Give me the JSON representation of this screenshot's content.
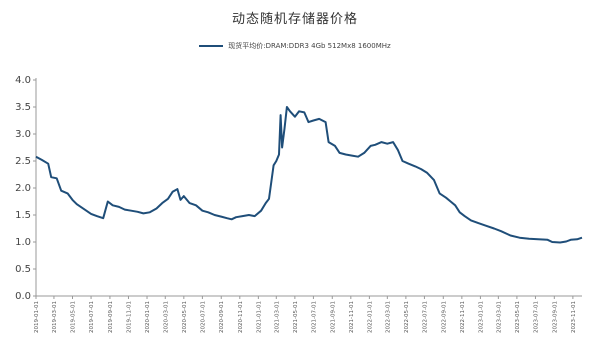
{
  "chart_data": {
    "type": "line",
    "title": "动态随机存储器价格",
    "series": [
      {
        "name": "现货平均价:DRAM:DDR3 4Gb 512Mx8 1600MHz",
        "color": "#1f4e79",
        "points": [
          [
            "2019-01-01",
            2.58
          ],
          [
            "2019-01-20",
            2.52
          ],
          [
            "2019-02-10",
            2.45
          ],
          [
            "2019-02-20",
            2.2
          ],
          [
            "2019-03-10",
            2.18
          ],
          [
            "2019-03-25",
            1.95
          ],
          [
            "2019-04-15",
            1.9
          ],
          [
            "2019-05-01",
            1.78
          ],
          [
            "2019-05-15",
            1.7
          ],
          [
            "2019-06-10",
            1.6
          ],
          [
            "2019-07-01",
            1.52
          ],
          [
            "2019-07-20",
            1.48
          ],
          [
            "2019-08-10",
            1.44
          ],
          [
            "2019-08-25",
            1.75
          ],
          [
            "2019-09-10",
            1.68
          ],
          [
            "2019-10-01",
            1.65
          ],
          [
            "2019-10-20",
            1.6
          ],
          [
            "2019-11-10",
            1.58
          ],
          [
            "2019-12-01",
            1.56
          ],
          [
            "2019-12-20",
            1.53
          ],
          [
            "2020-01-10",
            1.55
          ],
          [
            "2020-02-01",
            1.62
          ],
          [
            "2020-02-20",
            1.72
          ],
          [
            "2020-03-10",
            1.8
          ],
          [
            "2020-03-25",
            1.93
          ],
          [
            "2020-04-10",
            1.98
          ],
          [
            "2020-04-20",
            1.78
          ],
          [
            "2020-05-01",
            1.85
          ],
          [
            "2020-05-20",
            1.72
          ],
          [
            "2020-06-10",
            1.68
          ],
          [
            "2020-07-01",
            1.58
          ],
          [
            "2020-07-20",
            1.55
          ],
          [
            "2020-08-10",
            1.5
          ],
          [
            "2020-09-01",
            1.47
          ],
          [
            "2020-09-20",
            1.44
          ],
          [
            "2020-10-05",
            1.42
          ],
          [
            "2020-10-20",
            1.46
          ],
          [
            "2020-11-10",
            1.48
          ],
          [
            "2020-12-01",
            1.5
          ],
          [
            "2020-12-20",
            1.48
          ],
          [
            "2021-01-10",
            1.58
          ],
          [
            "2021-01-25",
            1.72
          ],
          [
            "2021-02-05",
            1.8
          ],
          [
            "2021-02-20",
            2.42
          ],
          [
            "2021-03-01",
            2.5
          ],
          [
            "2021-03-10",
            2.62
          ],
          [
            "2021-03-15",
            3.35
          ],
          [
            "2021-03-20",
            2.75
          ],
          [
            "2021-03-28",
            3.1
          ],
          [
            "2021-04-05",
            3.5
          ],
          [
            "2021-04-15",
            3.42
          ],
          [
            "2021-05-01",
            3.32
          ],
          [
            "2021-05-15",
            3.42
          ],
          [
            "2021-06-01",
            3.4
          ],
          [
            "2021-06-15",
            3.22
          ],
          [
            "2021-07-01",
            3.25
          ],
          [
            "2021-07-20",
            3.28
          ],
          [
            "2021-08-10",
            3.22
          ],
          [
            "2021-08-20",
            2.85
          ],
          [
            "2021-09-10",
            2.78
          ],
          [
            "2021-09-25",
            2.65
          ],
          [
            "2021-10-15",
            2.62
          ],
          [
            "2021-11-05",
            2.6
          ],
          [
            "2021-11-25",
            2.58
          ],
          [
            "2021-12-15",
            2.65
          ],
          [
            "2022-01-05",
            2.78
          ],
          [
            "2022-01-20",
            2.8
          ],
          [
            "2022-02-10",
            2.85
          ],
          [
            "2022-03-01",
            2.82
          ],
          [
            "2022-03-20",
            2.85
          ],
          [
            "2022-04-05",
            2.7
          ],
          [
            "2022-04-20",
            2.5
          ],
          [
            "2022-05-10",
            2.45
          ],
          [
            "2022-06-01",
            2.4
          ],
          [
            "2022-06-20",
            2.35
          ],
          [
            "2022-07-10",
            2.28
          ],
          [
            "2022-08-01",
            2.15
          ],
          [
            "2022-08-20",
            1.9
          ],
          [
            "2022-09-10",
            1.82
          ],
          [
            "2022-09-25",
            1.75
          ],
          [
            "2022-10-10",
            1.68
          ],
          [
            "2022-10-25",
            1.55
          ],
          [
            "2022-11-10",
            1.48
          ],
          [
            "2022-12-01",
            1.4
          ],
          [
            "2022-12-25",
            1.35
          ],
          [
            "2023-01-20",
            1.3
          ],
          [
            "2023-02-15",
            1.25
          ],
          [
            "2023-03-10",
            1.2
          ],
          [
            "2023-04-10",
            1.12
          ],
          [
            "2023-05-10",
            1.08
          ],
          [
            "2023-06-10",
            1.06
          ],
          [
            "2023-07-10",
            1.05
          ],
          [
            "2023-08-10",
            1.04
          ],
          [
            "2023-08-25",
            1.0
          ],
          [
            "2023-09-20",
            0.99
          ],
          [
            "2023-10-10",
            1.01
          ],
          [
            "2023-10-25",
            1.04
          ],
          [
            "2023-11-15",
            1.05
          ],
          [
            "2023-12-01",
            1.08
          ]
        ]
      }
    ],
    "x_type": "date",
    "xlim": [
      "2019-01-01",
      "2023-12-01"
    ],
    "x_tick_labels": [
      "2019-01-01",
      "2019-03-01",
      "2019-05-01",
      "2019-07-01",
      "2019-09-01",
      "2019-11-01",
      "2020-01-01",
      "2020-03-01",
      "2020-05-01",
      "2020-07-01",
      "2020-09-01",
      "2020-11-01",
      "2021-01-01",
      "2021-03-01",
      "2021-05-01",
      "2021-07-01",
      "2021-09-01",
      "2021-11-01",
      "2022-01-01",
      "2022-03-01",
      "2022-05-01",
      "2022-07-01",
      "2022-09-01",
      "2022-11-01",
      "2023-01-01",
      "2023-03-01",
      "2023-05-01",
      "2023-07-01",
      "2023-09-01",
      "2023-11-01"
    ],
    "ylim": [
      0,
      4.0
    ],
    "y_ticks": [
      "0.0",
      "0.5",
      "1.0",
      "1.5",
      "2.0",
      "2.5",
      "3.0",
      "3.5",
      "4.0"
    ],
    "xlabel": "",
    "ylabel": "",
    "legend_position": "top-center",
    "grid": false
  }
}
